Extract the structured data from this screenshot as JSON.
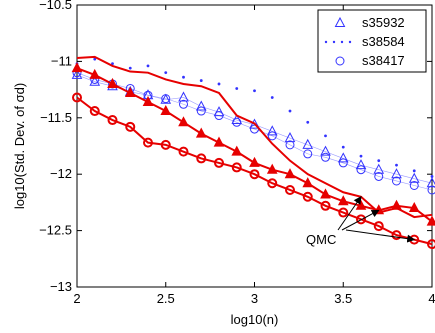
{
  "chart_data": {
    "type": "line",
    "xlabel": "log10(n)",
    "ylabel": "log10(Std. Dev. of σd)",
    "xlim": [
      2,
      4
    ],
    "ylim": [
      -13,
      -10.5
    ],
    "x_ticks": [
      2,
      2.5,
      3,
      3.5,
      4
    ],
    "x_tick_labels": [
      "2",
      "2.5",
      "3",
      "3.5",
      "4"
    ],
    "y_ticks": [
      -13,
      -12.5,
      -12,
      -11.5,
      -11,
      -10.5
    ],
    "y_tick_labels": [
      "−13",
      "−12.5",
      "−12",
      "−11.5",
      "−11",
      "−10.5"
    ],
    "grid": false,
    "legend_position": "top-right",
    "colors": {
      "mc": "#3333ff",
      "qmc": "#e60000"
    },
    "series": [
      {
        "name": "s35932",
        "group": "MC",
        "marker": "triangle",
        "x": [
          2.0,
          2.1,
          2.2,
          2.3,
          2.4,
          2.5,
          2.6,
          2.7,
          2.8,
          2.9,
          3.0,
          3.1,
          3.2,
          3.3,
          3.4,
          3.5,
          3.6,
          3.7,
          3.8,
          3.9,
          4.0
        ],
        "y": [
          -11.12,
          -11.18,
          -11.22,
          -11.27,
          -11.3,
          -11.34,
          -11.32,
          -11.4,
          -11.45,
          -11.52,
          -11.56,
          -11.62,
          -11.68,
          -11.74,
          -11.8,
          -11.86,
          -11.92,
          -11.96,
          -12.0,
          -12.04,
          -12.08
        ]
      },
      {
        "name": "s38584",
        "group": "MC",
        "marker": "dot",
        "x": [
          2.0,
          2.1,
          2.2,
          2.3,
          2.4,
          2.5,
          2.6,
          2.7,
          2.8,
          2.9,
          3.0,
          3.1,
          3.2,
          3.3,
          3.4,
          3.5,
          3.6,
          3.7,
          3.8,
          3.9,
          4.0
        ],
        "y": [
          -11.02,
          -10.98,
          -11.02,
          -11.06,
          -11.04,
          -11.1,
          -11.14,
          -11.17,
          -11.2,
          -11.24,
          -11.26,
          -11.32,
          -11.44,
          -11.54,
          -11.66,
          -11.76,
          -11.84,
          -11.88,
          -11.92,
          -11.97,
          -12.02
        ]
      },
      {
        "name": "s38417",
        "group": "MC",
        "marker": "circle",
        "x": [
          2.0,
          2.1,
          2.2,
          2.3,
          2.4,
          2.5,
          2.6,
          2.7,
          2.8,
          2.9,
          3.0,
          3.1,
          3.2,
          3.3,
          3.4,
          3.5,
          3.6,
          3.7,
          3.8,
          3.9,
          4.0
        ],
        "y": [
          -11.1,
          -11.16,
          -11.2,
          -11.24,
          -11.3,
          -11.33,
          -11.38,
          -11.44,
          -11.48,
          -11.54,
          -11.6,
          -11.66,
          -11.74,
          -11.82,
          -11.85,
          -11.9,
          -11.96,
          -12.02,
          -12.06,
          -12.1,
          -12.14
        ]
      },
      {
        "group": "QMC",
        "marker": "none",
        "x": [
          2.0,
          2.1,
          2.2,
          2.3,
          2.4,
          2.5,
          2.6,
          2.7,
          2.8,
          2.9,
          3.0,
          3.1,
          3.2,
          3.3,
          3.4,
          3.5,
          3.6,
          3.7,
          3.8,
          3.9,
          4.0
        ],
        "y": [
          -10.97,
          -10.96,
          -11.04,
          -11.09,
          -11.1,
          -11.16,
          -11.2,
          -11.22,
          -11.28,
          -11.48,
          -11.55,
          -11.73,
          -11.88,
          -12.0,
          -12.08,
          -12.16,
          -12.2,
          -12.34,
          -12.3,
          -12.38,
          -12.36
        ]
      },
      {
        "group": "QMC",
        "marker": "triangle-filled",
        "x": [
          2.0,
          2.1,
          2.2,
          2.3,
          2.4,
          2.5,
          2.6,
          2.7,
          2.8,
          2.9,
          3.0,
          3.1,
          3.2,
          3.3,
          3.4,
          3.5,
          3.6,
          3.7,
          3.8,
          3.9,
          4.0
        ],
        "y": [
          -11.06,
          -11.12,
          -11.2,
          -11.28,
          -11.36,
          -11.44,
          -11.54,
          -11.64,
          -11.72,
          -11.8,
          -11.9,
          -11.96,
          -12.0,
          -12.08,
          -12.18,
          -12.24,
          -12.28,
          -12.32,
          -12.28,
          -12.3,
          -12.42
        ]
      },
      {
        "group": "QMC",
        "marker": "circle-filled",
        "x": [
          2.0,
          2.1,
          2.2,
          2.3,
          2.4,
          2.5,
          2.6,
          2.7,
          2.8,
          2.9,
          3.0,
          3.1,
          3.2,
          3.3,
          3.4,
          3.5,
          3.6,
          3.7,
          3.8,
          3.9,
          4.0
        ],
        "y": [
          -11.32,
          -11.44,
          -11.52,
          -11.58,
          -11.72,
          -11.74,
          -11.8,
          -11.86,
          -11.9,
          -11.94,
          -12.0,
          -12.08,
          -12.14,
          -12.2,
          -12.28,
          -12.34,
          -12.4,
          -12.46,
          -12.54,
          -12.58,
          -12.62
        ]
      }
    ],
    "annotation": {
      "text": "QMC"
    }
  }
}
